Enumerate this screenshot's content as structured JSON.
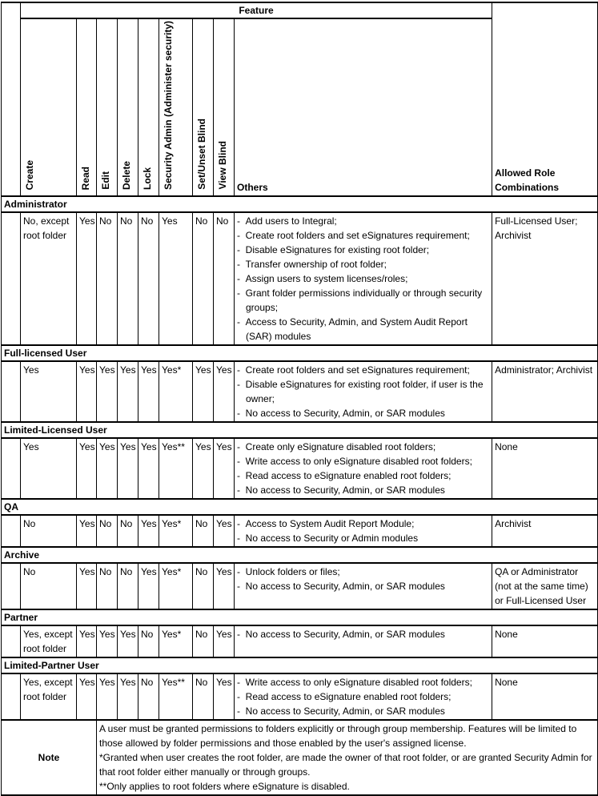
{
  "header": {
    "feature": "Feature",
    "columns": [
      "Create",
      "Read",
      "Edit",
      "Delete",
      "Lock",
      "Security Admin (Administer security)",
      "Set/Unset Blind",
      "View Blind"
    ],
    "others": "Others",
    "allowed": "Allowed Role Combinations"
  },
  "roles": [
    {
      "name": "Administrator",
      "values": [
        "No, except root folder",
        "Yes",
        "No",
        "No",
        "No",
        "Yes",
        "No",
        "No"
      ],
      "others": [
        "Add users to Integral;",
        "Create root folders and set eSignatures requirement;",
        "Disable eSignatures for existing root folder;",
        "Transfer ownership of root folder;",
        "Assign users to system licenses/roles;",
        "Grant folder permissions individually or through security groups;",
        "Access to Security, Admin, and System Audit Report (SAR) modules"
      ],
      "allowed": "Full-Licensed User; Archivist"
    },
    {
      "name": "Full-licensed User",
      "values": [
        "Yes",
        "Yes",
        "Yes",
        "Yes",
        "Yes",
        "Yes*",
        "Yes",
        "Yes"
      ],
      "others": [
        "Create root folders and set eSignatures requirement;",
        "Disable eSignatures for existing root folder, if user is the owner;",
        "No access to Security, Admin, or SAR modules"
      ],
      "allowed": "Administrator; Archivist"
    },
    {
      "name": "Limited-Licensed User",
      "values": [
        "Yes",
        "Yes",
        "Yes",
        "Yes",
        "Yes",
        "Yes**",
        "Yes",
        "Yes"
      ],
      "others": [
        "Create only eSignature disabled root folders;",
        "Write access to only eSignature disabled root folders;",
        "Read access to eSignature enabled root folders;",
        "No access to Security, Admin, or SAR modules"
      ],
      "allowed": "None"
    },
    {
      "name": "QA",
      "values": [
        "No",
        "Yes",
        "No",
        "No",
        "Yes",
        "Yes*",
        "No",
        "Yes"
      ],
      "others": [
        "Access to System Audit Report Module;",
        "No access to Security or Admin modules"
      ],
      "allowed": "Archivist"
    },
    {
      "name": "Archive",
      "values": [
        "No",
        "Yes",
        "No",
        "No",
        "Yes",
        "Yes*",
        "No",
        "Yes"
      ],
      "others": [
        "Unlock folders or files;",
        "No access to Security, Admin, or SAR modules"
      ],
      "allowed": "QA or Administrator (not at the same time) or Full-Licensed User"
    },
    {
      "name": "Partner",
      "values": [
        "Yes, except root folder",
        "Yes",
        "Yes",
        "Yes",
        "No",
        "Yes*",
        "No",
        "Yes"
      ],
      "others": [
        "No access to Security, Admin, or SAR modules"
      ],
      "allowed": "None"
    },
    {
      "name": "Limited-Partner User",
      "values": [
        "Yes, except root folder",
        "Yes",
        "Yes",
        "Yes",
        "No",
        "Yes**",
        "No",
        "Yes"
      ],
      "others": [
        "Write access to only eSignature disabled root folders;",
        "Read access to eSignature enabled root folders;",
        "No access to Security, Admin, or SAR modules"
      ],
      "allowed": "None"
    }
  ],
  "note": {
    "label": "Note",
    "lines": [
      "A user must be granted permissions to folders explicitly or through group membership. Features will be limited to those allowed by folder permissions and those enabled by the user's assigned license.",
      "*Granted when user creates the root folder, are made the owner of that root folder, or are granted Security Admin for that root folder either manually or through groups.",
      "**Only applies to root folders where eSignature is disabled."
    ]
  }
}
